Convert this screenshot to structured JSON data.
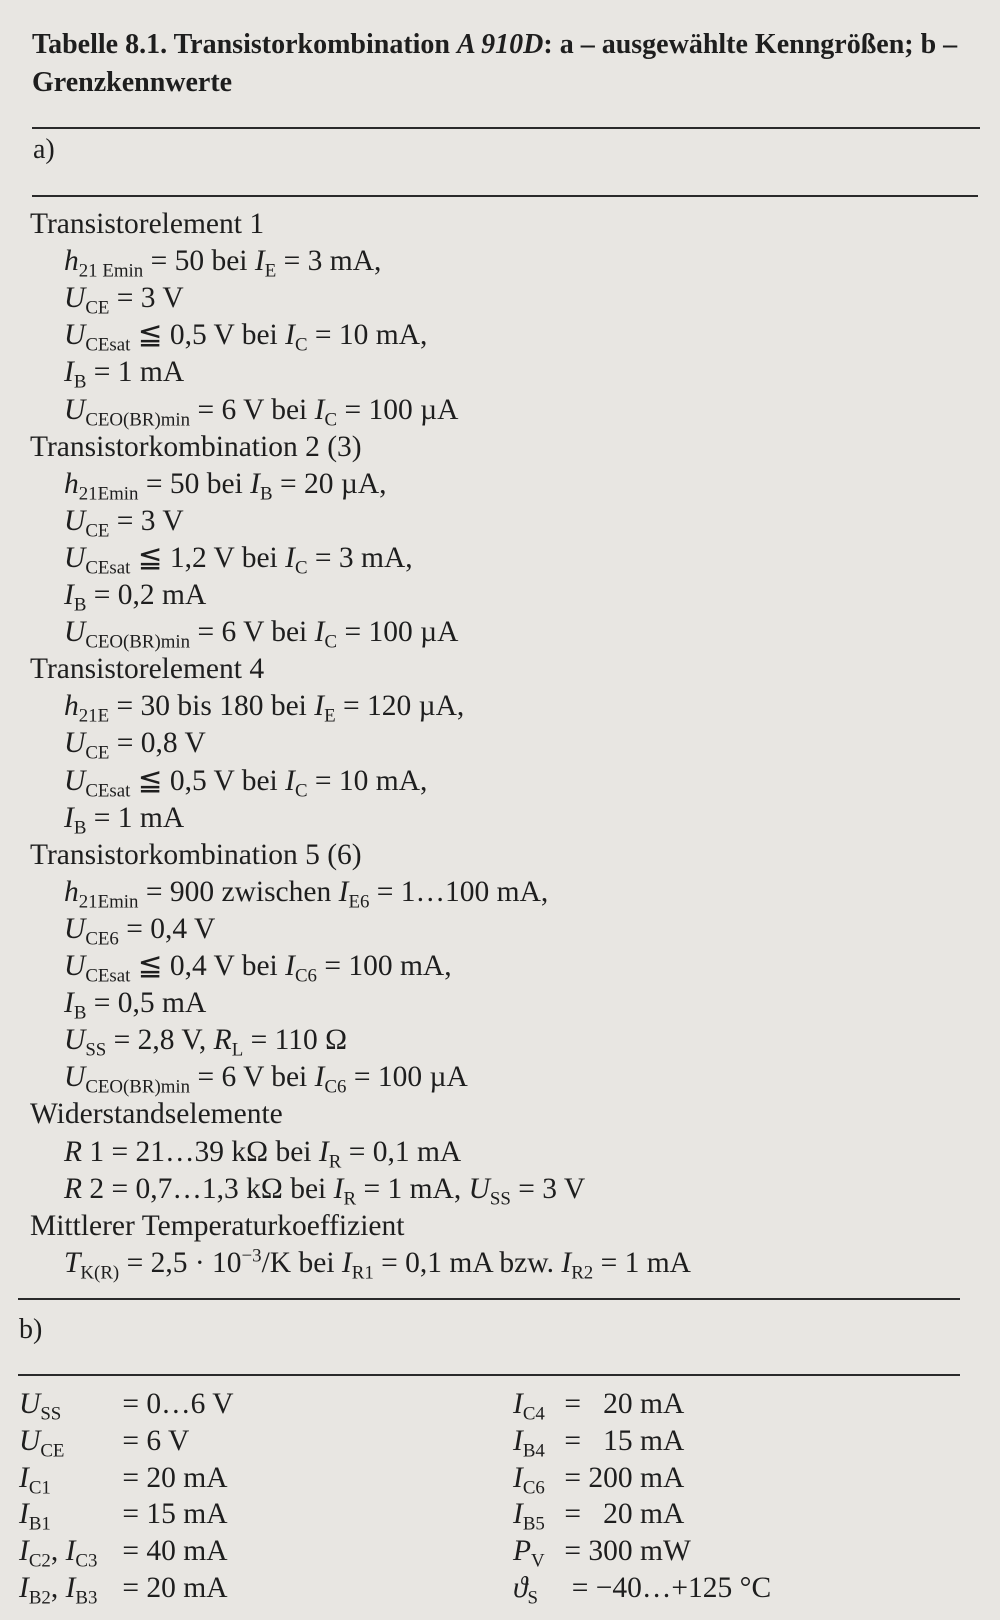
{
  "title": {
    "prefix": "Tabelle 8.1.   Transistorkombination ",
    "device": "A 910D",
    "suffix": ": a – ausgewählte Kenngrößen; b – Grenzkennwerte"
  },
  "section_a": {
    "label": "a)",
    "lines": [
      {
        "kind": "head",
        "seg": [
          "Transistorelement 1"
        ]
      },
      {
        "kind": "item",
        "seg": [
          "i:h",
          "s:21 Emin",
          " = 50 bei ",
          "i:I",
          "s:E",
          " = 3 mA,"
        ]
      },
      {
        "kind": "item",
        "seg": [
          "i:U",
          "s:CE",
          " = 3 V"
        ]
      },
      {
        "kind": "item",
        "seg": [
          "i:U",
          "s:CEsat",
          " ≦ 0,5 V bei ",
          "i:I",
          "s:C",
          " = 10 mA,"
        ]
      },
      {
        "kind": "item",
        "seg": [
          "i:I",
          "s:B",
          " = 1 mA"
        ]
      },
      {
        "kind": "item",
        "seg": [
          "i:U",
          "s:CEO(BR)min",
          " = 6 V bei ",
          "i:I",
          "s:C",
          " = 100 µA"
        ]
      },
      {
        "kind": "head",
        "seg": [
          "Transistorkombination 2 (3)"
        ]
      },
      {
        "kind": "item",
        "seg": [
          "i:h",
          "s:21Emin",
          " = 50 bei ",
          "i:I",
          "s:B",
          " = 20 µA,"
        ]
      },
      {
        "kind": "item",
        "seg": [
          "i:U",
          "s:CE",
          " = 3 V"
        ]
      },
      {
        "kind": "item",
        "seg": [
          "i:U",
          "s:CEsat",
          " ≦ 1,2 V bei ",
          "i:I",
          "s:C",
          " = 3 mA,"
        ]
      },
      {
        "kind": "item",
        "seg": [
          "i:I",
          "s:B",
          " = 0,2 mA"
        ]
      },
      {
        "kind": "item",
        "seg": [
          "i:U",
          "s:CEO(BR)min",
          " = 6 V bei ",
          "i:I",
          "s:C",
          " = 100 µA"
        ]
      },
      {
        "kind": "head",
        "seg": [
          "Transistorelement 4"
        ]
      },
      {
        "kind": "item",
        "seg": [
          "i:h",
          "s:21E",
          " = 30 bis 180 bei ",
          "i:I",
          "s:E",
          " = 120 µA,"
        ]
      },
      {
        "kind": "item",
        "seg": [
          "i:U",
          "s:CE",
          " = 0,8 V"
        ]
      },
      {
        "kind": "item",
        "seg": [
          "i:U",
          "s:CEsat",
          " ≦ 0,5 V bei ",
          "i:I",
          "s:C",
          " = 10 mA,"
        ]
      },
      {
        "kind": "item",
        "seg": [
          "i:I",
          "s:B",
          " = 1 mA"
        ]
      },
      {
        "kind": "head",
        "seg": [
          "Transistorkombination 5 (6)"
        ]
      },
      {
        "kind": "item",
        "seg": [
          "i:h",
          "s:21Emin",
          " = 900 zwischen ",
          "i:I",
          "s:E6",
          " = 1…100 mA,"
        ]
      },
      {
        "kind": "item",
        "seg": [
          "i:U",
          "s:CE6",
          " = 0,4 V"
        ]
      },
      {
        "kind": "item",
        "seg": [
          "i:U",
          "s:CEsat",
          " ≦ 0,4 V bei ",
          "i:I",
          "s:C6",
          " = 100 mA,"
        ]
      },
      {
        "kind": "item",
        "seg": [
          "i:I",
          "s:B",
          " = 0,5 mA"
        ]
      },
      {
        "kind": "item",
        "seg": [
          "i:U",
          "s:SS",
          " = 2,8 V, ",
          "i:R",
          "s:L",
          " = 110 Ω"
        ]
      },
      {
        "kind": "item",
        "seg": [
          "i:U",
          "s:CEO(BR)min",
          " = 6 V bei ",
          "i:I",
          "s:C6",
          " = 100 µA"
        ]
      },
      {
        "kind": "head",
        "seg": [
          "Widerstandselemente"
        ]
      },
      {
        "kind": "item",
        "seg": [
          "i:R",
          " 1 = 21…39 kΩ bei ",
          "i:I",
          "s:R",
          " = 0,1 mA"
        ]
      },
      {
        "kind": "item",
        "seg": [
          "i:R",
          " 2 = 0,7…1,3 kΩ bei ",
          "i:I",
          "s:R",
          " = 1 mA, ",
          "i:U",
          "s:SS",
          " = 3 V"
        ]
      },
      {
        "kind": "head",
        "seg": [
          "Mittlerer Temperaturkoeffizient"
        ]
      },
      {
        "kind": "item",
        "seg": [
          "i:T",
          "s:K(R)",
          " = 2,5 · 10",
          "p:−3",
          "/K bei ",
          "i:I",
          "s:R1",
          " = 0,1 mA bzw. ",
          "i:I",
          "s:R2",
          " = 1 mA"
        ]
      }
    ]
  },
  "section_b": {
    "label": "b)",
    "left": [
      {
        "name": [
          "i:U",
          "s:SS"
        ],
        "value": "= 0…6 V"
      },
      {
        "name": [
          "i:U",
          "s:CE"
        ],
        "value": "= 6 V"
      },
      {
        "name": [
          "i:I",
          "s:C1"
        ],
        "value": "= 20 mA"
      },
      {
        "name": [
          "i:I",
          "s:B1"
        ],
        "value": "= 15 mA"
      },
      {
        "name": [
          "i:I",
          "s:C2",
          ", ",
          "i:I",
          "s:C3"
        ],
        "value": "= 40 mA"
      },
      {
        "name": [
          "i:I",
          "s:B2",
          ", ",
          "i:I",
          "s:B3"
        ],
        "value": "= 20 mA"
      }
    ],
    "right": [
      {
        "name": [
          "i:I",
          "s:C4"
        ],
        "value": "=   20 mA"
      },
      {
        "name": [
          "i:I",
          "s:B4"
        ],
        "value": "=   15 mA"
      },
      {
        "name": [
          "i:I",
          "s:C6"
        ],
        "value": "= 200 mA"
      },
      {
        "name": [
          "i:I",
          "s:B5"
        ],
        "value": "=   20 mA"
      },
      {
        "name": [
          "i:P",
          "s:V"
        ],
        "value": "= 300 mW"
      },
      {
        "name": [
          "i:ϑ",
          "s:S"
        ],
        "value": " = −40…+125 °C"
      }
    ]
  }
}
